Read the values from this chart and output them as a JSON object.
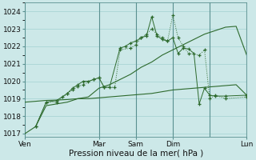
{
  "background_color": "#cce8e8",
  "grid_major_color": "#99cccc",
  "grid_minor_color": "#bbdddd",
  "line_color": "#2d6a2d",
  "xlabel": "Pression niveau de la mer( hPa )",
  "ylim": [
    1016.8,
    1024.5
  ],
  "yticks": [
    1017,
    1018,
    1019,
    1020,
    1021,
    1022,
    1023,
    1024
  ],
  "xlim": [
    0,
    42
  ],
  "day_labels": [
    "Ven",
    "",
    "Mar",
    "Sam",
    "",
    "Dim",
    "",
    "Lun"
  ],
  "day_positions": [
    0,
    10.5,
    14,
    21,
    24.5,
    28,
    35,
    42
  ],
  "day_line_positions": [
    0,
    14,
    21,
    28,
    35,
    42
  ],
  "series_flat_x": [
    0,
    2,
    4,
    6,
    8,
    10,
    12,
    14,
    16,
    18,
    20,
    22,
    24,
    26,
    28,
    30,
    32,
    34,
    36,
    38,
    40,
    42
  ],
  "series_flat_y": [
    1018.8,
    1018.85,
    1018.9,
    1018.92,
    1018.95,
    1019.0,
    1019.0,
    1019.05,
    1019.1,
    1019.15,
    1019.2,
    1019.25,
    1019.3,
    1019.4,
    1019.5,
    1019.55,
    1019.6,
    1019.65,
    1019.7,
    1019.75,
    1019.8,
    1019.2
  ],
  "series_rise_x": [
    0,
    2,
    4,
    6,
    8,
    10,
    12,
    14,
    16,
    18,
    20,
    22,
    24,
    26,
    28,
    30,
    32,
    34,
    36,
    38,
    40,
    42
  ],
  "series_rise_y": [
    1017.0,
    1017.4,
    1018.6,
    1018.7,
    1018.8,
    1019.0,
    1019.1,
    1019.6,
    1019.8,
    1020.1,
    1020.4,
    1020.8,
    1021.1,
    1021.5,
    1021.8,
    1022.1,
    1022.4,
    1022.7,
    1022.9,
    1023.1,
    1023.15,
    1021.5
  ],
  "series_dot_x": [
    2,
    4,
    6,
    8,
    9,
    10,
    11,
    13,
    14,
    15,
    17,
    18,
    20,
    21,
    22,
    23,
    24,
    25,
    26,
    27,
    28,
    29,
    30,
    31,
    33,
    34,
    35,
    36,
    38,
    42
  ],
  "series_dot_y": [
    1017.4,
    1018.8,
    1018.8,
    1019.3,
    1019.5,
    1019.7,
    1019.8,
    1020.1,
    1020.2,
    1019.65,
    1019.65,
    1021.8,
    1021.9,
    1022.1,
    1022.5,
    1022.7,
    1023.0,
    1022.7,
    1022.5,
    1022.3,
    1023.8,
    1022.5,
    1022.0,
    1021.6,
    1021.5,
    1021.8,
    1019.0,
    1019.2,
    1019.0,
    1019.1
  ],
  "series_solid_x": [
    2,
    4,
    6,
    7,
    8,
    9,
    10,
    11,
    12,
    13,
    14,
    15,
    16,
    18,
    19,
    20,
    21,
    22,
    23,
    24,
    25,
    26,
    27,
    28,
    29,
    30,
    31,
    32,
    33,
    34,
    35,
    36,
    38,
    42
  ],
  "series_solid_y": [
    1017.4,
    1018.8,
    1018.9,
    1019.1,
    1019.3,
    1019.6,
    1019.8,
    1020.0,
    1020.0,
    1020.1,
    1020.2,
    1019.65,
    1019.65,
    1021.9,
    1022.0,
    1022.2,
    1022.3,
    1022.5,
    1022.6,
    1023.7,
    1022.6,
    1022.4,
    1022.3,
    1022.5,
    1021.6,
    1021.9,
    1021.85,
    1021.6,
    1018.7,
    1019.6,
    1019.2,
    1019.15,
    1019.15,
    1019.2
  ]
}
